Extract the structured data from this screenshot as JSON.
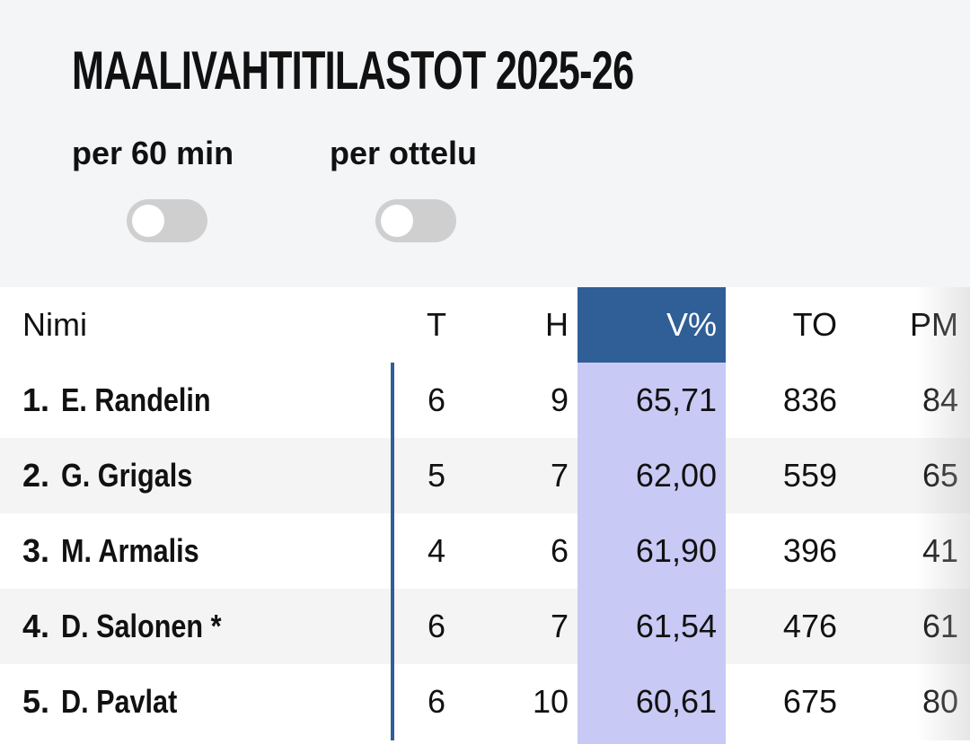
{
  "header": {
    "title": "MAALIVAHTITILASTOT 2025-26",
    "toggles": [
      {
        "label": "per 60 min",
        "on": false
      },
      {
        "label": "per ottelu",
        "on": false
      }
    ]
  },
  "table": {
    "columns": [
      "Nimi",
      "T",
      "H",
      "V%",
      "TO",
      "PM"
    ],
    "rows": [
      [
        "1.",
        "E. Randelin",
        "6",
        "9",
        "65,71",
        "836",
        "84"
      ],
      [
        "2.",
        "G. Grigals",
        "5",
        "7",
        "62,00",
        "559",
        "65"
      ],
      [
        "3.",
        "M. Armalis",
        "4",
        "6",
        "61,90",
        "396",
        "41"
      ],
      [
        "4.",
        "D. Salonen *",
        "6",
        "7",
        "61,54",
        "476",
        "61"
      ],
      [
        "5.",
        "D. Pavlat",
        "6",
        "10",
        "60,61",
        "675",
        "80"
      ]
    ]
  }
}
